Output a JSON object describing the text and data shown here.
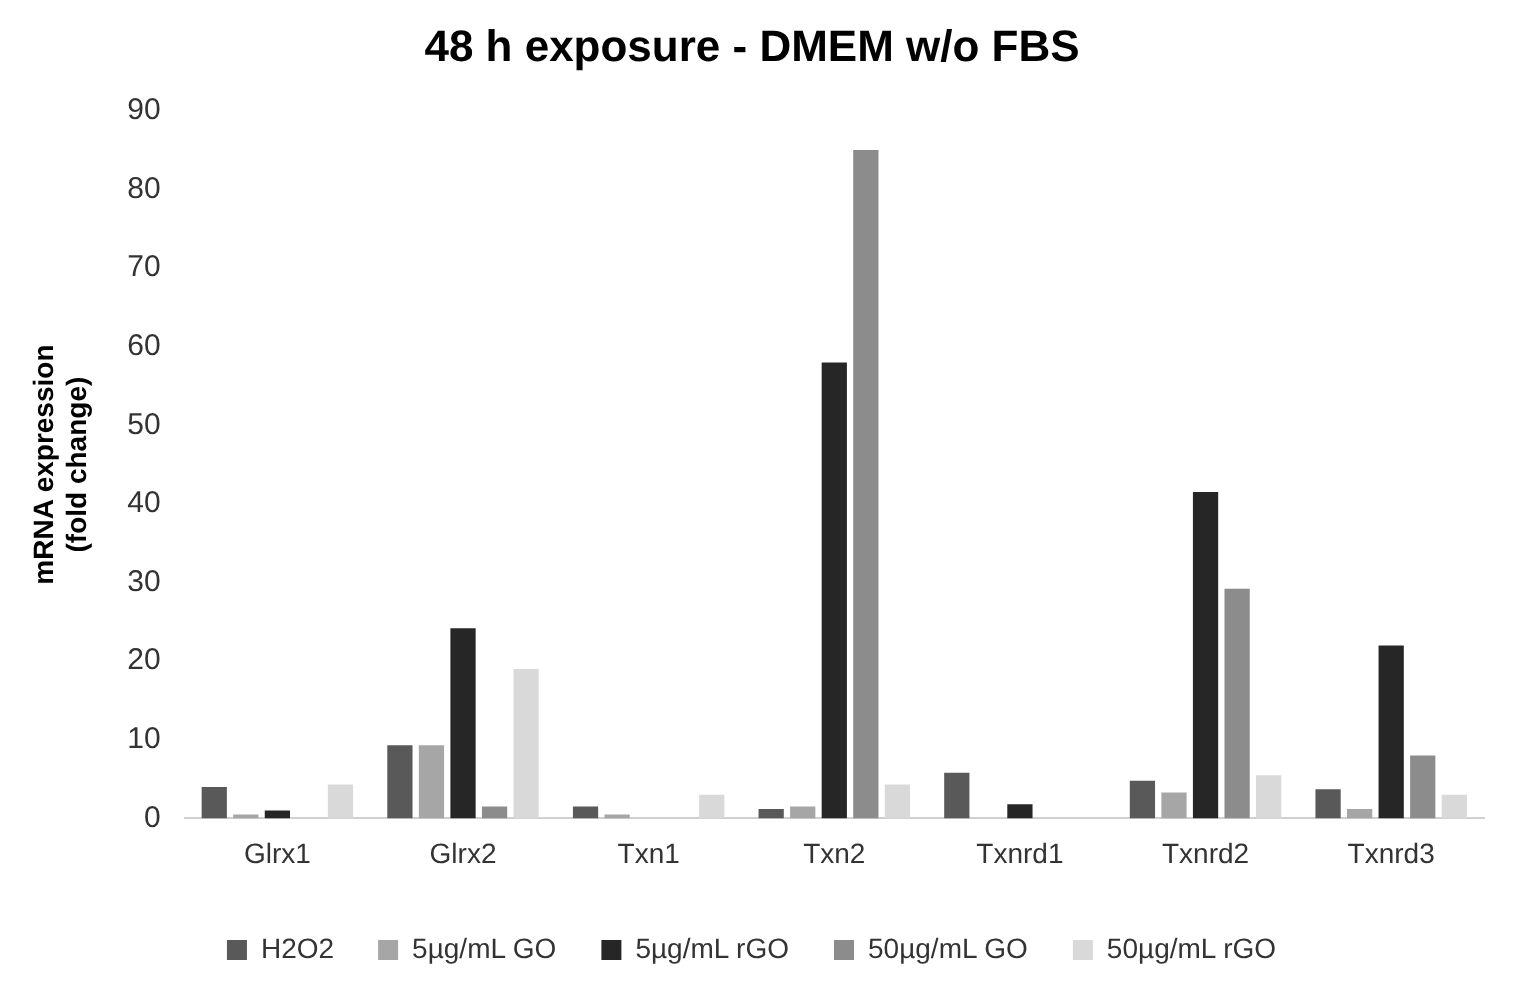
{
  "chart_data": {
    "type": "bar",
    "title": "48 h exposure - DMEM w/o FBS",
    "ylabel": "mRNA expression (fold change)",
    "categories": [
      "Glrx1",
      "Glrx2",
      "Txn1",
      "Txn2",
      "Txnrd1",
      "Txnrd2",
      "Txnrd3"
    ],
    "series": [
      {
        "name": "H2O2",
        "color": "#595959",
        "values": [
          4,
          9.3,
          1.5,
          1.2,
          5.8,
          4.8,
          3.7
        ]
      },
      {
        "name": "5µg/mL GO",
        "color": "#a6a6a6",
        "values": [
          0.5,
          9.3,
          0.5,
          1.5,
          0,
          3.3,
          1.2
        ]
      },
      {
        "name": "5µg/mL rGO",
        "color": "#262626",
        "values": [
          1,
          24.2,
          0,
          58,
          1.8,
          41.5,
          22
        ]
      },
      {
        "name": "50µg/mL GO",
        "color": "#8c8c8c",
        "values": [
          0,
          1.5,
          0,
          85,
          0,
          29.2,
          8
        ]
      },
      {
        "name": "50µg/mL rGO",
        "color": "#d9d9d9",
        "values": [
          4.3,
          19,
          3,
          4.3,
          0,
          5.5,
          3
        ]
      }
    ],
    "ylim": [
      0,
      90
    ],
    "yticks": [
      0,
      10,
      20,
      30,
      40,
      50,
      60,
      70,
      80,
      90
    ],
    "grid": false,
    "legend": "bottom"
  }
}
